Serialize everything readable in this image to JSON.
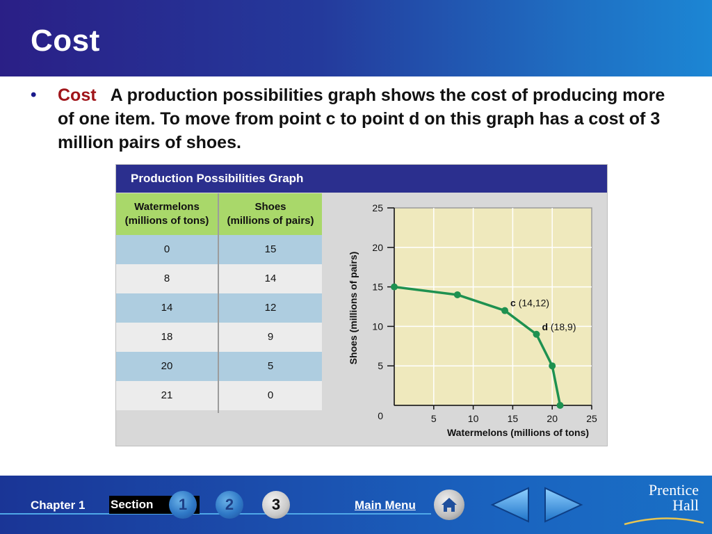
{
  "slide": {
    "title": "Cost",
    "bullet": {
      "term": "Cost",
      "body": "A production possibilities graph shows the cost of producing more of one item.  To move from point c to point d on this graph has a cost of 3 million pairs of shoes."
    }
  },
  "figure": {
    "title": "Production Possibilities Graph",
    "table": {
      "headers": [
        "Watermelons\n(millions of tons)",
        "Shoes\n(millions of pairs)"
      ],
      "rows": [
        [
          "0",
          "15"
        ],
        [
          "8",
          "14"
        ],
        [
          "14",
          "12"
        ],
        [
          "18",
          "9"
        ],
        [
          "20",
          "5"
        ],
        [
          "21",
          "0"
        ]
      ]
    }
  },
  "chart_data": {
    "type": "line",
    "title": "",
    "xlabel": "Watermelons (millions of tons)",
    "ylabel": "Shoes (millions of pairs)",
    "xlim": [
      0,
      25
    ],
    "ylim": [
      0,
      25
    ],
    "xticks": [
      5,
      10,
      15,
      20,
      25
    ],
    "yticks": [
      5,
      10,
      15,
      20,
      25
    ],
    "origin_label": "0",
    "grid": true,
    "series": [
      {
        "x": [
          0,
          8,
          14,
          18,
          20,
          21
        ],
        "y": [
          15,
          14,
          12,
          9,
          5,
          0
        ]
      }
    ],
    "annotations": [
      {
        "letter": "c",
        "label": "(14,12)",
        "x": 14,
        "y": 12
      },
      {
        "letter": "d",
        "label": "(18,9)",
        "x": 18,
        "y": 9
      }
    ],
    "colors": {
      "line": "#1e9150",
      "plot_bg": "#efe9bd",
      "panel_bg": "#d8d8d8"
    }
  },
  "footer": {
    "chapter_label": "Chapter 1",
    "section_label": "Section",
    "sections": [
      "1",
      "2",
      "3"
    ],
    "active_section": "3",
    "main_menu_label": "Main Menu",
    "publisher_line1": "Prentice",
    "publisher_line2": "Hall",
    "icons": [
      "home-icon",
      "back-arrow-icon",
      "forward-arrow-icon"
    ]
  }
}
